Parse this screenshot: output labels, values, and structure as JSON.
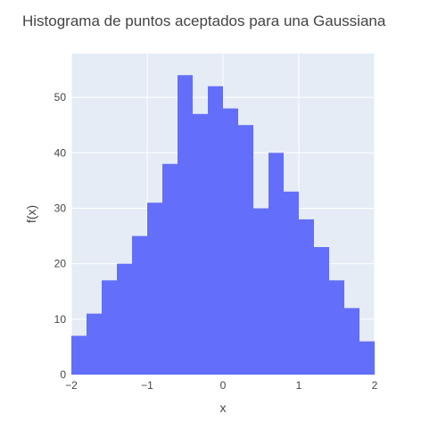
{
  "chart_data": {
    "type": "bar",
    "title": "Histograma de puntos aceptados para una Gaussiana",
    "xlabel": "x",
    "ylabel": "f(x)",
    "xlim": [
      -2,
      2
    ],
    "ylim": [
      0,
      57.9
    ],
    "bin_edges": [
      -2.0,
      -1.8,
      -1.6,
      -1.4,
      -1.2,
      -1.0,
      -0.8,
      -0.6,
      -0.4,
      -0.2,
      0.0,
      0.2,
      0.4,
      0.6,
      0.8,
      1.0,
      1.2,
      1.4,
      1.6,
      1.8,
      2.0
    ],
    "values": [
      7,
      11,
      17,
      20,
      25,
      31,
      38,
      54,
      47,
      52,
      48,
      45,
      30,
      40,
      33,
      28,
      23,
      17,
      12,
      6
    ],
    "x_ticks": [
      -2,
      -1,
      0,
      1,
      2
    ],
    "x_tick_labels": [
      "−2",
      "−1",
      "0",
      "1",
      "2"
    ],
    "y_ticks": [
      0,
      10,
      20,
      30,
      40,
      50
    ],
    "y_tick_labels": [
      "0",
      "10",
      "20",
      "30",
      "40",
      "50"
    ],
    "grid": true,
    "legend": false,
    "colors": {
      "bars": "#636efa",
      "plot_bg": "#e5ecf6",
      "grid": "#ffffff",
      "text": "#444444"
    }
  }
}
